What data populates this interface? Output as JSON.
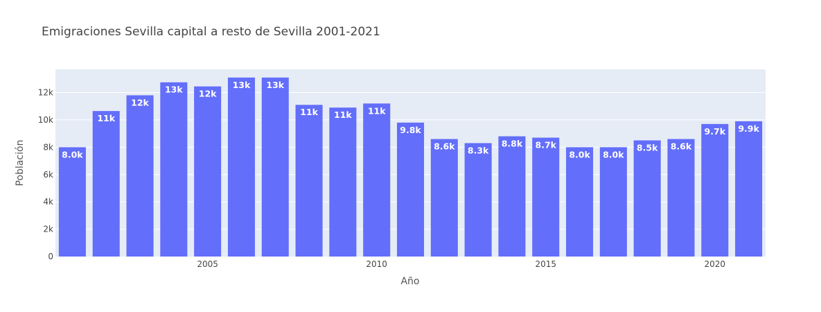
{
  "chart_data": {
    "type": "bar",
    "title": "Emigraciones Sevilla capital a resto de Sevilla 2001-2021",
    "xlabel": "Año",
    "ylabel": "Población",
    "x": [
      2001,
      2002,
      2003,
      2004,
      2005,
      2006,
      2007,
      2008,
      2009,
      2010,
      2011,
      2012,
      2013,
      2014,
      2015,
      2016,
      2017,
      2018,
      2019,
      2020,
      2021
    ],
    "values": [
      8000,
      10650,
      11800,
      12750,
      12450,
      13100,
      13100,
      11100,
      10900,
      11200,
      9800,
      8600,
      8300,
      8800,
      8700,
      8000,
      8000,
      8500,
      8600,
      9700,
      9900
    ],
    "data_labels": [
      "8.0k",
      "11k",
      "12k",
      "13k",
      "12k",
      "13k",
      "13k",
      "11k",
      "11k",
      "11k",
      "9.8k",
      "8.6k",
      "8.3k",
      "8.8k",
      "8.7k",
      "8.0k",
      "8.0k",
      "8.5k",
      "8.6k",
      "9.7k",
      "9.9k"
    ],
    "x_ticks": [
      2005,
      2010,
      2015,
      2020
    ],
    "y_ticks": [
      0,
      2000,
      4000,
      6000,
      8000,
      10000,
      12000
    ],
    "y_tick_labels": [
      "0",
      "2k",
      "4k",
      "6k",
      "8k",
      "10k",
      "12k"
    ],
    "ylim": [
      0,
      13700
    ],
    "grid": true,
    "colors": {
      "bar": "#636efa",
      "plot_bg": "#e5ecf6"
    }
  }
}
